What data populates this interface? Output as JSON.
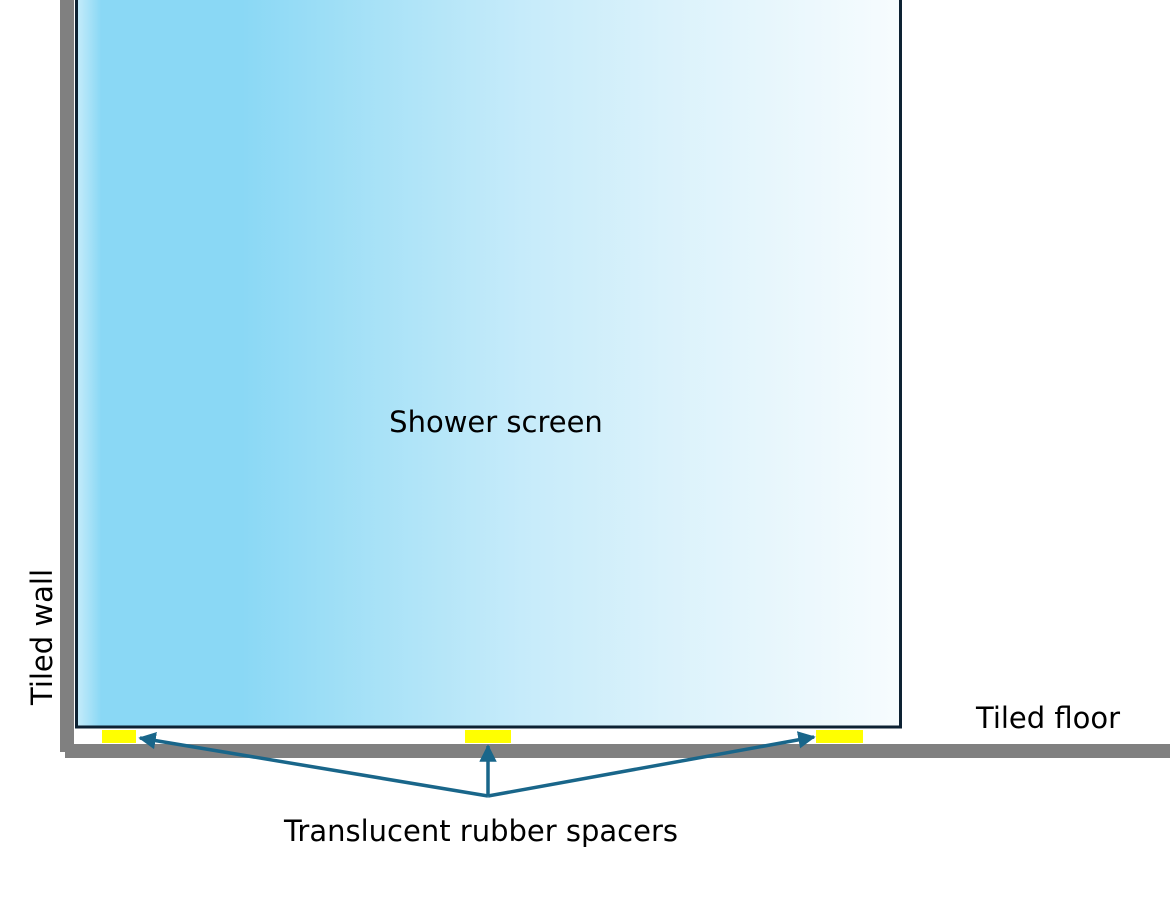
{
  "labels": {
    "screen": "Shower screen",
    "wall": "Tiled wall",
    "floor": "Tiled floor",
    "spacers": "Translucent rubber spacers"
  },
  "colors": {
    "wall_floor": "#808080",
    "screen_border": "#0d2233",
    "spacer": "#ffff00",
    "arrow": "#19668a",
    "glass_left": "#8ad8f5",
    "glass_right": "#f7fcfe"
  },
  "spacer_count": 3
}
